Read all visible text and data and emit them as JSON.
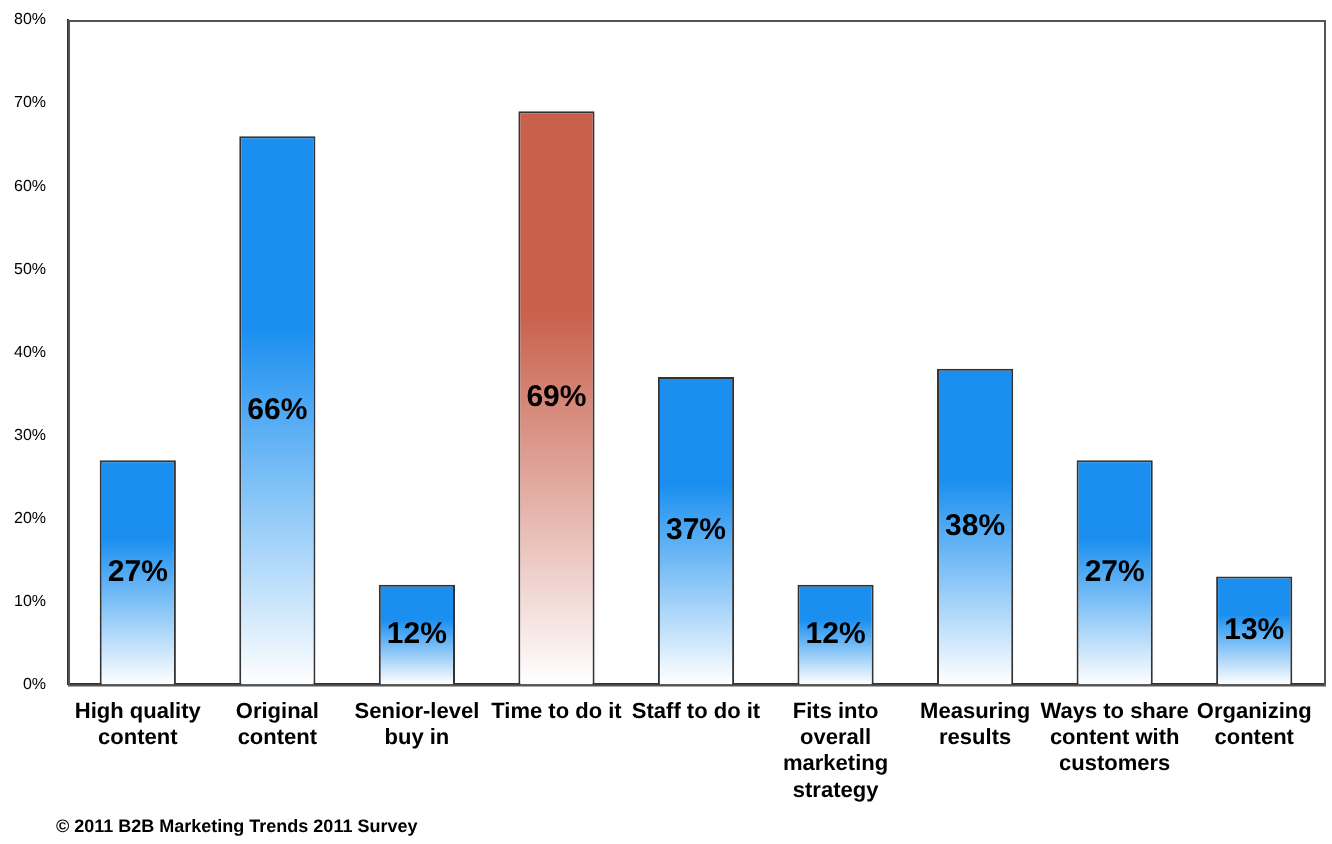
{
  "chart_data": {
    "type": "bar",
    "categories": [
      "High quality content",
      "Original content",
      "Senior-level buy in",
      "Time to do it",
      "Staff to do it",
      "Fits into overall marketing strategy",
      "Measuring results",
      "Ways to share content with customers",
      "Organizing content"
    ],
    "values": [
      27,
      66,
      12,
      69,
      37,
      12,
      38,
      27,
      13
    ],
    "colors": [
      "#1a8ff0",
      "#1a8ff0",
      "#1a8ff0",
      "#c8604c",
      "#1a8ff0",
      "#1a8ff0",
      "#1a8ff0",
      "#1a8ff0",
      "#1a8ff0"
    ],
    "ylim": [
      0,
      80
    ],
    "yticks": [
      {
        "value": 0,
        "label": "0%"
      },
      {
        "value": 10,
        "label": "10%"
      },
      {
        "value": 20,
        "label": "20%"
      },
      {
        "value": 30,
        "label": "30%"
      },
      {
        "value": 40,
        "label": "40%"
      },
      {
        "value": 50,
        "label": "50%"
      },
      {
        "value": 60,
        "label": "60%"
      },
      {
        "value": 70,
        "label": "70%"
      },
      {
        "value": 80,
        "label": "80%"
      }
    ],
    "value_labels": [
      "27%",
      "66%",
      "12%",
      "69%",
      "37%",
      "12%",
      "38%",
      "27%",
      "13%"
    ],
    "grid": false,
    "legend": false,
    "annotations": [
      "© 2011 B2B Marketing Trends 2011 Survey"
    ]
  }
}
